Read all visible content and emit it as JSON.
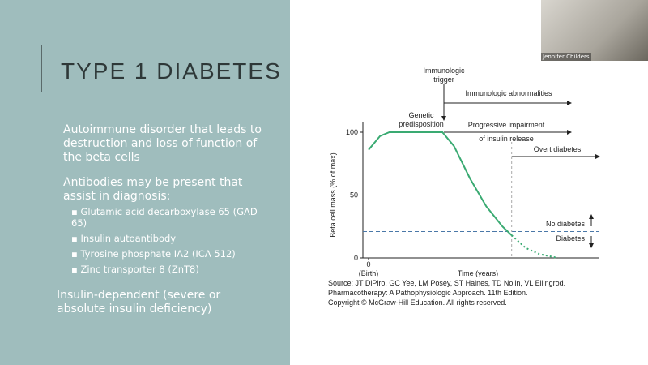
{
  "slide": {
    "title": "TYPE 1 DIABETES",
    "bullets": [
      {
        "text": "Autoimmune disorder that leads to destruction and loss of function of the beta cells"
      },
      {
        "text": "Antibodies may be present that assist in diagnosis:",
        "sub": [
          "Glutamic acid decarboxylase 65 (GAD 65)",
          "Insulin autoantibody",
          "Tyrosine phosphate IA2 (ICA 512)",
          "Zinc transporter 8 (ZnT8)"
        ]
      }
    ],
    "footer_text": "Insulin-dependent (severe or absolute insulin deficiency)"
  },
  "video": {
    "participant": "Jennifer Childers"
  },
  "chart_data": {
    "type": "line",
    "y_label": "Beta cell mass (% of max)",
    "x_label": "Time (years)",
    "x_tick_note": "(Birth)",
    "xlim": [
      0,
      100
    ],
    "ylim": [
      0,
      100
    ],
    "xticks": [
      0
    ],
    "yticks": [
      0,
      50,
      100
    ],
    "x": [
      0,
      5,
      9,
      32,
      37,
      44,
      51,
      58,
      62,
      68,
      74,
      82
    ],
    "series": [
      {
        "values": [
          86,
          97,
          100,
          100,
          89,
          63,
          41,
          25,
          18,
          null,
          null,
          null
        ],
        "color": "#3aaa72",
        "style": "solid"
      },
      {
        "values": [
          null,
          null,
          null,
          null,
          null,
          null,
          null,
          null,
          18,
          8,
          3,
          0
        ],
        "color": "#3aaa72",
        "style": "dotted"
      }
    ],
    "threshold": 21,
    "threshold_color": "#4a78a8",
    "onset_x": 62,
    "annotations": {
      "trigger": "Immunologic trigger",
      "abnormalities": "Immunologic abnormalities",
      "genetic": "Genetic predisposition",
      "impairment_1": "Progressive impairment",
      "impairment_2": "of insulin release",
      "overt": "Overt diabetes",
      "no_diabetes": "No diabetes",
      "diabetes": "Diabetes"
    },
    "source": [
      "Source: JT DiPiro, GC Yee, LM Posey, ST Haines, TD Nolin, VL Ellingrod.",
      "Pharmacotherapy: A Pathophysiologic Approach. 11th Edition.",
      "Copyright © McGraw-Hill Education. All rights reserved."
    ]
  }
}
